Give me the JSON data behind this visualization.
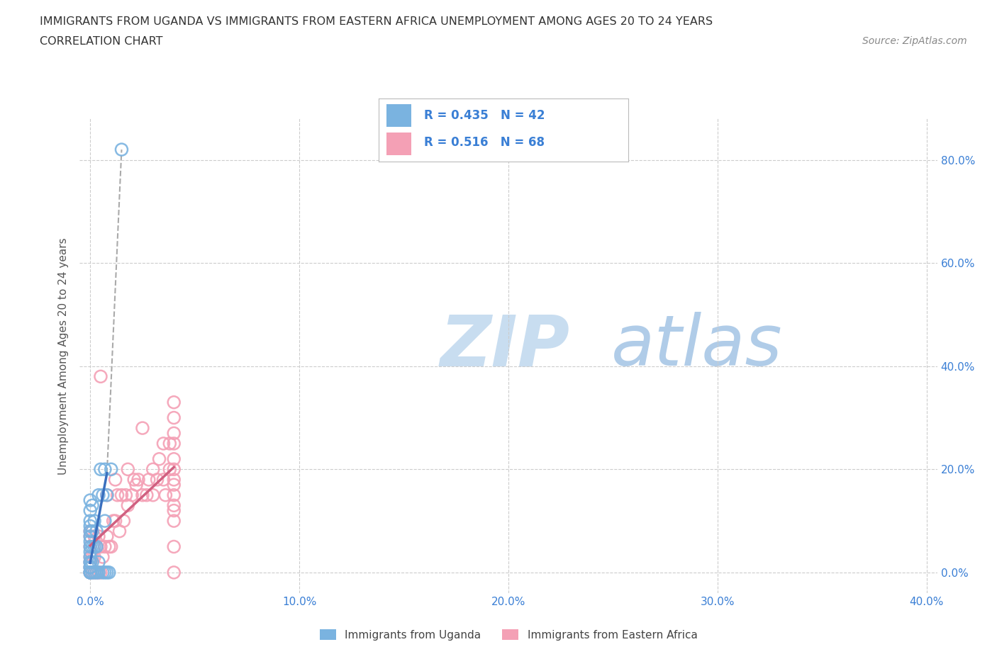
{
  "title_line1": "IMMIGRANTS FROM UGANDA VS IMMIGRANTS FROM EASTERN AFRICA UNEMPLOYMENT AMONG AGES 20 TO 24 YEARS",
  "title_line2": "CORRELATION CHART",
  "source": "Source: ZipAtlas.com",
  "ylabel": "Unemployment Among Ages 20 to 24 years",
  "xlim": [
    -0.005,
    0.405
  ],
  "ylim": [
    -0.04,
    0.88
  ],
  "xticks": [
    0.0,
    0.1,
    0.2,
    0.3,
    0.4
  ],
  "yticks": [
    0.0,
    0.2,
    0.4,
    0.6,
    0.8
  ],
  "grid_color": "#cccccc",
  "background_color": "#ffffff",
  "watermark_zip": "ZIP",
  "watermark_atlas": "atlas",
  "watermark_color_zip": "#c8ddf0",
  "watermark_color_atlas": "#b0cce8",
  "uganda_color": "#7ab3e0",
  "eastern_africa_color": "#f4a0b5",
  "uganda_line_color": "#3a6fbe",
  "eastern_africa_line_color": "#d06080",
  "legend_text_color": "#3a7fd5",
  "legend_r_uganda": "0.435",
  "legend_n_uganda": "42",
  "legend_r_eastern": "0.516",
  "legend_n_eastern": "68",
  "uganda_x": [
    0.0,
    0.0,
    0.0,
    0.0,
    0.0,
    0.0,
    0.0,
    0.0,
    0.0,
    0.0,
    0.0,
    0.0,
    0.0,
    0.0,
    0.0,
    0.0,
    0.0,
    0.001,
    0.001,
    0.001,
    0.001,
    0.001,
    0.002,
    0.002,
    0.002,
    0.003,
    0.003,
    0.003,
    0.004,
    0.004,
    0.004,
    0.005,
    0.006,
    0.006,
    0.007,
    0.007,
    0.007,
    0.008,
    0.008,
    0.009,
    0.01,
    0.015
  ],
  "uganda_y": [
    0.0,
    0.0,
    0.0,
    0.01,
    0.01,
    0.02,
    0.02,
    0.03,
    0.04,
    0.05,
    0.06,
    0.07,
    0.08,
    0.09,
    0.1,
    0.12,
    0.14,
    0.0,
    0.02,
    0.05,
    0.08,
    0.13,
    0.0,
    0.05,
    0.1,
    0.0,
    0.05,
    0.08,
    0.0,
    0.02,
    0.15,
    0.2,
    0.0,
    0.15,
    0.0,
    0.1,
    0.2,
    0.0,
    0.15,
    0.0,
    0.2,
    0.82
  ],
  "eastern_x": [
    0.0,
    0.0,
    0.0,
    0.0,
    0.0,
    0.0,
    0.0,
    0.0,
    0.001,
    0.001,
    0.001,
    0.002,
    0.002,
    0.002,
    0.003,
    0.003,
    0.004,
    0.004,
    0.005,
    0.005,
    0.005,
    0.006,
    0.007,
    0.008,
    0.008,
    0.009,
    0.01,
    0.011,
    0.012,
    0.012,
    0.013,
    0.014,
    0.015,
    0.016,
    0.017,
    0.018,
    0.018,
    0.02,
    0.021,
    0.022,
    0.023,
    0.025,
    0.025,
    0.027,
    0.028,
    0.03,
    0.03,
    0.032,
    0.033,
    0.035,
    0.035,
    0.036,
    0.038,
    0.038,
    0.04,
    0.04,
    0.04,
    0.04,
    0.04,
    0.04,
    0.04,
    0.04,
    0.04,
    0.04,
    0.04,
    0.04,
    0.04,
    0.04
  ],
  "eastern_y": [
    0.0,
    0.0,
    0.01,
    0.02,
    0.03,
    0.05,
    0.07,
    0.08,
    0.0,
    0.03,
    0.08,
    0.0,
    0.03,
    0.07,
    0.0,
    0.05,
    0.0,
    0.07,
    0.0,
    0.05,
    0.38,
    0.03,
    0.05,
    0.07,
    0.15,
    0.05,
    0.05,
    0.1,
    0.1,
    0.18,
    0.15,
    0.08,
    0.15,
    0.1,
    0.15,
    0.13,
    0.2,
    0.15,
    0.18,
    0.17,
    0.18,
    0.15,
    0.28,
    0.15,
    0.18,
    0.15,
    0.2,
    0.18,
    0.22,
    0.18,
    0.25,
    0.15,
    0.2,
    0.25,
    0.0,
    0.05,
    0.1,
    0.12,
    0.13,
    0.15,
    0.17,
    0.18,
    0.2,
    0.22,
    0.25,
    0.27,
    0.3,
    0.33
  ]
}
